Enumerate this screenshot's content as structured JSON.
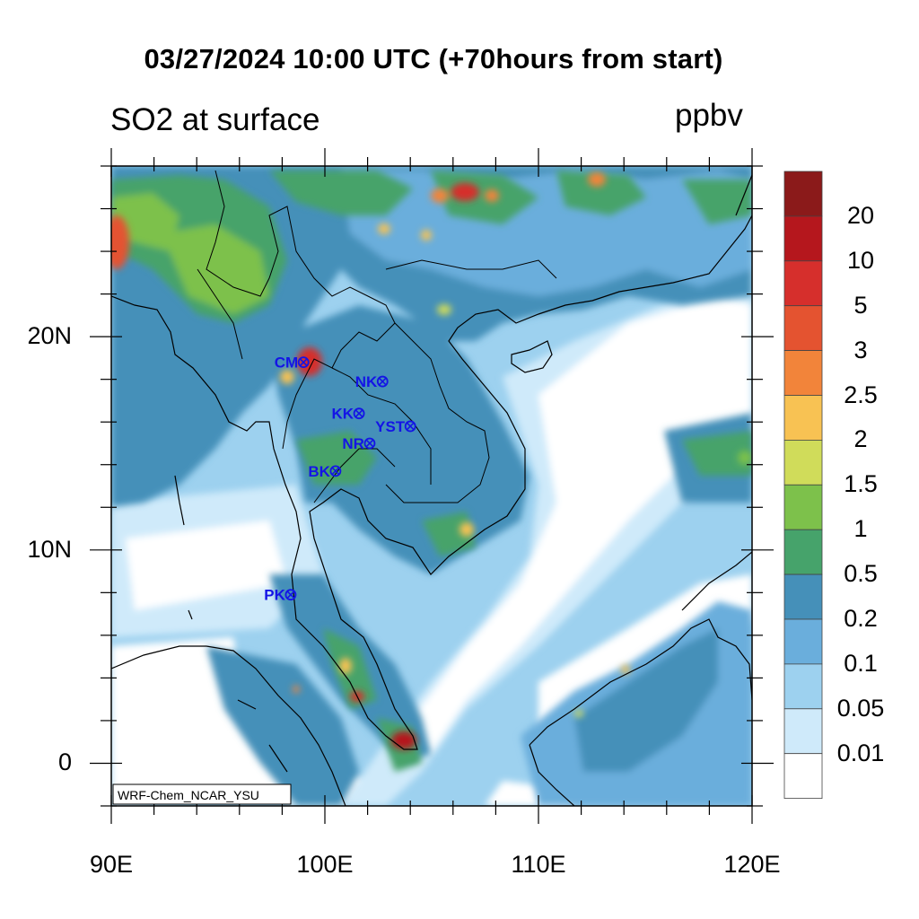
{
  "title": "03/27/2024 10:00 UTC (+70hours from start)",
  "left_subtitle": "SO2 at surface",
  "right_subtitle": "ppbv",
  "credit": "WRF-Chem_NCAR_YSU",
  "map_extent": {
    "lon": [
      90,
      120
    ],
    "lat": [
      -2,
      28
    ]
  },
  "lat_labels": [
    {
      "text": "20N",
      "lat": 20
    },
    {
      "text": "10N",
      "lat": 10
    },
    {
      "text": "0",
      "lat": 0
    }
  ],
  "lon_labels": [
    {
      "text": "90E",
      "lon": 90
    },
    {
      "text": "100E",
      "lon": 100
    },
    {
      "text": "110E",
      "lon": 110
    },
    {
      "text": "120E",
      "lon": 120
    }
  ],
  "colorbar": {
    "levels": [
      "20",
      "10",
      "5",
      "3",
      "2.5",
      "2",
      "1.5",
      "1",
      "0.5",
      "0.2",
      "0.1",
      "0.05",
      "0.01"
    ],
    "colors": [
      "#8b1a1a",
      "#b5171d",
      "#d62f2c",
      "#e45330",
      "#f2843a",
      "#f8c253",
      "#d0dc5a",
      "#7dc14b",
      "#46a36b",
      "#4590b9",
      "#6aaedc",
      "#9dd1ef",
      "#cfeafa",
      "#ffffff"
    ]
  },
  "stations": [
    {
      "code": "CM",
      "lon": 99.0,
      "lat": 18.8
    },
    {
      "code": "NK",
      "lon": 102.7,
      "lat": 17.9
    },
    {
      "code": "KK",
      "lon": 101.6,
      "lat": 16.4
    },
    {
      "code": "YST",
      "lon": 104.0,
      "lat": 15.8
    },
    {
      "code": "NR",
      "lon": 102.1,
      "lat": 15.0
    },
    {
      "code": "BK",
      "lon": 100.5,
      "lat": 13.7
    },
    {
      "code": "PK",
      "lon": 98.4,
      "lat": 7.9
    }
  ],
  "station_color": "#1414e6"
}
